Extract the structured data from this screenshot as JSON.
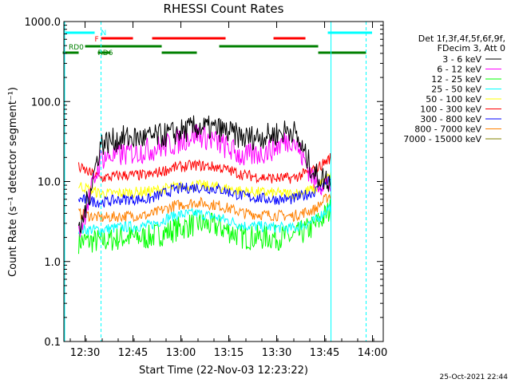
{
  "chart_data": {
    "type": "line",
    "title": "RHESSI Count Rates",
    "xlabel": "Start Time (22-Nov-03 12:23:22)",
    "ylabel": "Count Rate (s⁻¹ detector segment⁻¹)",
    "yscale": "log",
    "ylim": [
      0.1,
      1000
    ],
    "xlim_minutes": [
      0,
      100
    ],
    "x_tick_labels": [
      "12:30",
      "12:45",
      "13:00",
      "13:15",
      "13:30",
      "13:45",
      "14:00"
    ],
    "y_tick_labels": [
      "0.1",
      "1.0",
      "10.0",
      "100.0",
      "1000.0"
    ],
    "x_tick_values": [
      "12:30",
      "12:45",
      "13:00",
      "13:15",
      "13:30",
      "13:45",
      "14:00"
    ],
    "y_tick_values": [
      0.1,
      1,
      10,
      100,
      1000
    ],
    "grid": false,
    "legend_position": "right",
    "legend_header": [
      "Det 1f,3f,4f,5f,6f,9f,",
      "FDecim 3, Att 0"
    ],
    "x_times": [
      "12:28",
      "12:35",
      "12:42",
      "12:50",
      "12:58",
      "13:05",
      "13:12",
      "13:20",
      "13:28",
      "13:35",
      "13:42",
      "13:47"
    ],
    "series": [
      {
        "name": "3 - 6 keV",
        "color": "#000000",
        "values": [
          2.0,
          30,
          35,
          35,
          40,
          48,
          45,
          35,
          38,
          45,
          12,
          10
        ]
      },
      {
        "name": "6 - 12 keV",
        "color": "#ff00ff",
        "values": [
          2.2,
          20,
          22,
          25,
          30,
          40,
          30,
          20,
          25,
          35,
          10,
          9
        ]
      },
      {
        "name": "12 - 25 keV",
        "color": "#00ff00",
        "values": [
          1.8,
          1.8,
          2.0,
          2.0,
          2.5,
          3.0,
          2.7,
          2.0,
          2.0,
          2.0,
          2.8,
          4.5
        ]
      },
      {
        "name": "25 - 50 keV",
        "color": "#00ffff",
        "values": [
          2.5,
          2.5,
          2.7,
          2.8,
          3.8,
          4.0,
          3.5,
          2.8,
          2.7,
          2.6,
          3.2,
          5.0
        ]
      },
      {
        "name": "50 - 100 keV",
        "color": "#ffff00",
        "values": [
          9.0,
          7.0,
          7.2,
          7.5,
          8.5,
          9.0,
          8.5,
          7.5,
          7.2,
          7.0,
          8.0,
          12
        ]
      },
      {
        "name": "100 - 300 keV",
        "color": "#ff0000",
        "values": [
          15,
          11,
          12,
          12,
          15,
          16,
          15,
          12,
          11,
          11,
          14,
          20
        ]
      },
      {
        "name": "300 - 800 keV",
        "color": "#0000ff",
        "values": [
          6.0,
          5.5,
          6.0,
          6.0,
          8.0,
          8.5,
          8.0,
          6.5,
          6.0,
          6.0,
          7.5,
          11
        ]
      },
      {
        "name": "800 - 7000 keV",
        "color": "#ff8000",
        "values": [
          4.0,
          3.5,
          3.7,
          3.8,
          5.0,
          5.5,
          5.0,
          4.0,
          3.8,
          3.7,
          4.5,
          7.0
        ]
      },
      {
        "name": "7000 - 15000 keV",
        "color": "#808000",
        "values": [
          null,
          null,
          null,
          null,
          null,
          null,
          null,
          null,
          null,
          null,
          null,
          null
        ]
      }
    ],
    "flag_labels": {
      "n": "N",
      "f": "F",
      "rd0": "RD0",
      "rd6": "RD6"
    },
    "flag_colors": {
      "n": "#00ffff",
      "f": "#ff0000",
      "rd": "#008000"
    },
    "footer_timestamp": "25-Oct-2021 22:44"
  }
}
